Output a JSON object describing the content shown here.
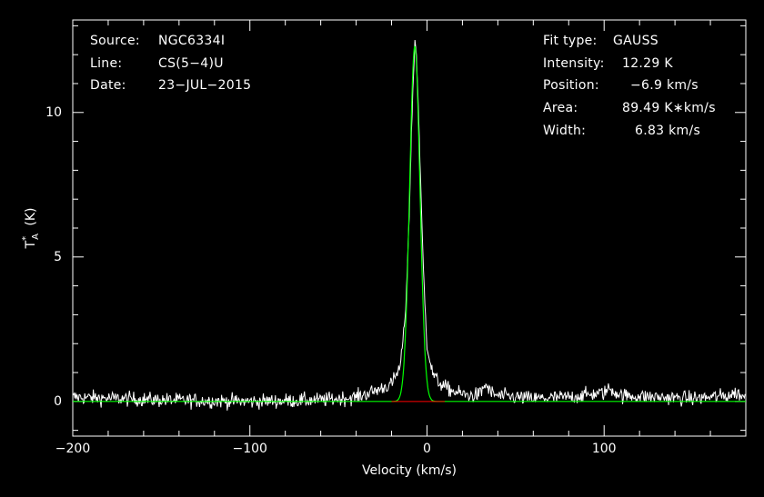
{
  "header_left": {
    "rows": [
      {
        "key": "Source:",
        "value": "NGC6334I"
      },
      {
        "key": "Line:",
        "value": "CS(5−4)U"
      },
      {
        "key": "Date:",
        "value": "23−JUL−2015"
      }
    ]
  },
  "fit_info": {
    "fit_type_label": "Fit type:",
    "fit_type_value": "GAUSS",
    "intensity_label": "Intensity:",
    "intensity_value": "12.29 K",
    "position_label": "Position:",
    "position_value": "−6.9 km/s",
    "area_label": "Area:",
    "area_value": "89.49 K∗km/s",
    "width_label": "Width:",
    "width_value": "6.83 km/s"
  },
  "colors": {
    "background": "#000000",
    "axes": "#ffffff",
    "spectrum": "#ffffff",
    "fit": "#00ff00",
    "baseline": "#ff0000"
  },
  "chart_data": {
    "type": "line",
    "title": "",
    "xlabel": "Velocity (km/s)",
    "ylabel": "T_A^* (K)",
    "ylabel_main": "T",
    "ylabel_sub": "A",
    "ylabel_sup": "*",
    "ylabel_unit": "(K)",
    "xlim": [
      -200,
      180
    ],
    "ylim": [
      -1.2,
      13.2
    ],
    "xticks": [
      -200,
      -100,
      0,
      100
    ],
    "xtick_labels": [
      "−200",
      "−100",
      "0",
      "100"
    ],
    "yticks": [
      0,
      5,
      10
    ],
    "ytick_labels": [
      "0",
      "5",
      "10"
    ],
    "grid": false,
    "series": [
      {
        "role": "spectrum",
        "noise_rms": 0.18,
        "x": [
          -200,
          -150,
          -100,
          -60,
          -40,
          -30,
          -20,
          -15,
          -12,
          -10,
          -9,
          -8,
          -7,
          -6.9,
          -6,
          -5,
          -4,
          -2,
          0,
          3,
          6,
          10,
          15,
          20,
          25,
          30,
          33,
          36,
          40,
          60,
          80,
          100,
          103,
          110,
          130,
          150,
          170,
          175,
          180
        ],
        "y": [
          0.15,
          0.05,
          0.0,
          0.05,
          0.15,
          0.35,
          0.6,
          1.2,
          3.2,
          6.5,
          8.8,
          10.8,
          12.2,
          12.6,
          12.0,
          10.5,
          8.3,
          4.5,
          1.9,
          1.0,
          0.7,
          0.5,
          0.35,
          0.25,
          0.2,
          0.25,
          0.6,
          0.3,
          0.2,
          0.1,
          0.15,
          0.3,
          0.45,
          0.2,
          0.15,
          0.1,
          0.2,
          0.3,
          0.1
        ]
      },
      {
        "role": "fit",
        "amplitude": 12.29,
        "center": -6.9,
        "fwhm": 6.83
      },
      {
        "role": "baseline",
        "x": [
          -20,
          10
        ],
        "y": [
          0,
          0
        ]
      }
    ]
  }
}
